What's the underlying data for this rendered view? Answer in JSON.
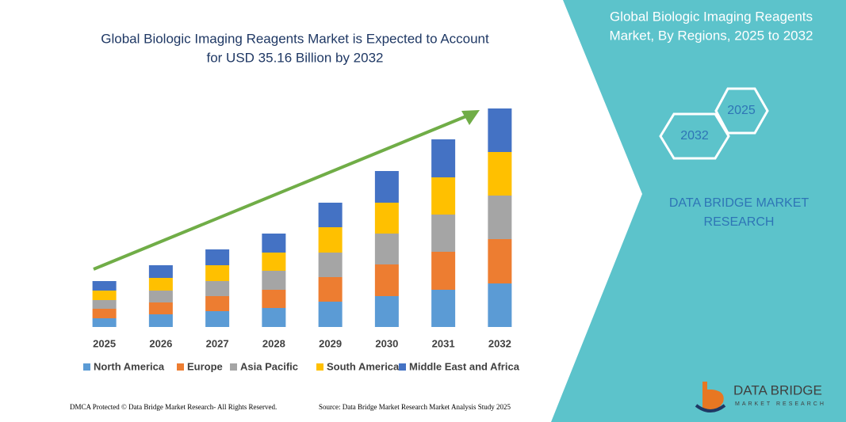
{
  "chart_data": {
    "type": "stacked-bar",
    "title": [
      "Global Biologic Imaging Reagents Market is Expected to Account",
      "for USD 35.16 Billion by 2032"
    ],
    "categories": [
      "2025",
      "2026",
      "2027",
      "2028",
      "2029",
      "2030",
      "2031",
      "2032"
    ],
    "series": [
      {
        "name": "North America",
        "color": "#5b9bd5",
        "values": [
          11,
          16,
          20,
          24,
          32,
          39,
          47,
          55
        ]
      },
      {
        "name": "Europe",
        "color": "#ed7d31",
        "values": [
          12,
          15,
          19,
          23,
          31,
          40,
          48,
          56
        ]
      },
      {
        "name": "Asia Pacific",
        "color": "#a5a5a5",
        "values": [
          11,
          15,
          19,
          24,
          31,
          39,
          47,
          55
        ]
      },
      {
        "name": "South America",
        "color": "#ffc000",
        "values": [
          12,
          16,
          20,
          23,
          32,
          39,
          47,
          55
        ]
      },
      {
        "name": "Middle East and Africa",
        "color": "#4472c4",
        "values": [
          12,
          16,
          20,
          24,
          31,
          40,
          48,
          55
        ]
      }
    ],
    "ylim": [
      0,
      300
    ]
  },
  "panel": {
    "title": [
      "Global Biologic Imaging Reagents",
      "Market, By Regions, 2025 to 2032"
    ],
    "hexagons": [
      "2025",
      "2032"
    ],
    "brand": [
      "DATA BRIDGE MARKET",
      "RESEARCH"
    ],
    "logo": [
      "DATA BRIDGE",
      "MARKET RESEARCH"
    ]
  },
  "footer": {
    "left": "DMCA Protected © Data Bridge Market Research- All Rights Reserved.",
    "right": "Source: Data Bridge Market Research Market Analysis Study 2025"
  }
}
